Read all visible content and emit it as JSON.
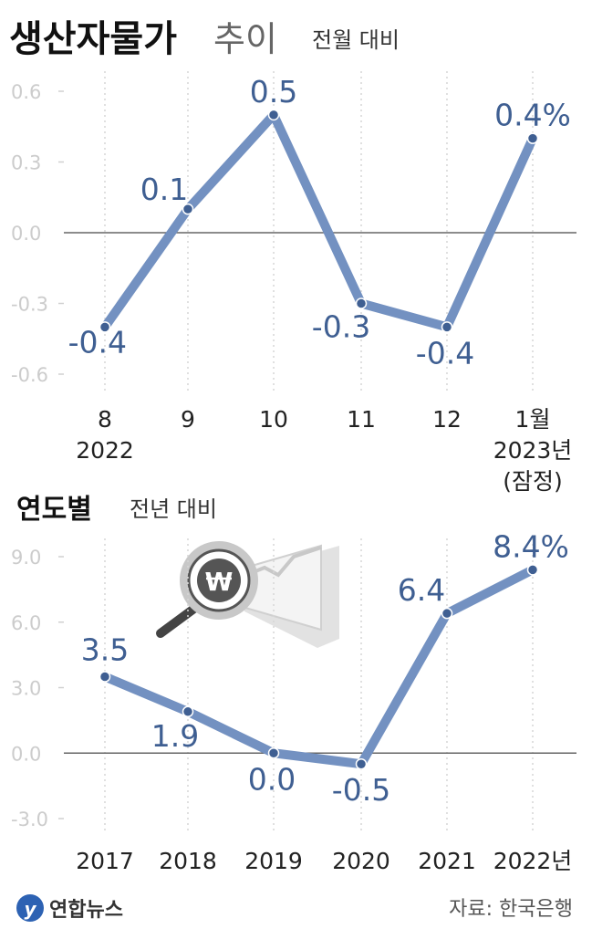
{
  "header": {
    "title_bold": "생산자물가",
    "title_light": "추이",
    "subtitle": "전월 대비"
  },
  "chart_data": [
    {
      "type": "line",
      "subtitle": "전월 대비",
      "x_labels": [
        [
          "8",
          "2022"
        ],
        [
          "9"
        ],
        [
          "10"
        ],
        [
          "11"
        ],
        [
          "12"
        ],
        [
          "1월",
          "2023년",
          "(잠정)"
        ]
      ],
      "y_ticks": [
        "0.6",
        "0.3",
        "0.0",
        "-0.3",
        "-0.6"
      ],
      "ylim": [
        -0.6,
        0.6
      ],
      "values": [
        -0.4,
        0.1,
        0.5,
        -0.3,
        -0.4,
        0.4
      ],
      "value_labels": [
        "-0.4",
        "0.1",
        "0.5",
        "-0.3",
        "-0.4",
        "0.4%"
      ],
      "grid": "vertical dotted",
      "line_color": "#7391c1",
      "text_color": "#3f5f92"
    },
    {
      "type": "line",
      "title": "연도별",
      "subtitle": "전년 대비",
      "x_labels": [
        [
          "2017"
        ],
        [
          "2018"
        ],
        [
          "2019"
        ],
        [
          "2020"
        ],
        [
          "2021"
        ],
        [
          "2022년"
        ]
      ],
      "y_ticks": [
        "9.0",
        "6.0",
        "3.0",
        "0.0",
        "-3.0"
      ],
      "ylim": [
        -3.0,
        9.0
      ],
      "values": [
        3.5,
        1.9,
        0.0,
        -0.5,
        6.4,
        8.4
      ],
      "value_labels": [
        "3.5",
        "1.9",
        "0.0",
        "-0.5",
        "6.4",
        "8.4%"
      ],
      "grid": "vertical dotted",
      "line_color": "#7391c1",
      "text_color": "#3f5f92"
    }
  ],
  "footer": {
    "logo_text": "연합뉴스",
    "source": "자료: 한국은행"
  },
  "colors": {
    "line": "#7391c1",
    "value_text": "#3f5f92",
    "axis_text": "#cccccc",
    "title_text": "#111111"
  },
  "icons": [
    "magnifier-won-icon",
    "yonhap-logo-icon"
  ]
}
